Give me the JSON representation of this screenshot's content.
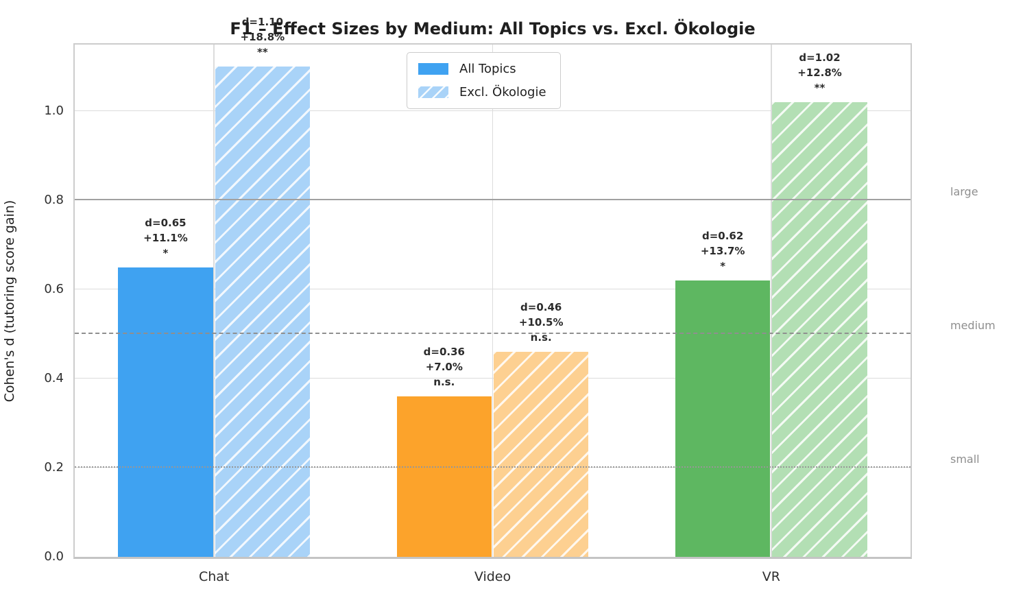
{
  "chart_data": {
    "type": "bar",
    "title": "F1 – Effect Sizes by Medium: All Topics vs. Excl. Ökologie",
    "xlabel": "",
    "ylabel": "Cohen's d (tutoring score gain)",
    "ylim": [
      0,
      1.15
    ],
    "yticks": [
      0.0,
      0.2,
      0.4,
      0.6,
      0.8,
      1.0
    ],
    "grid": true,
    "categories": [
      "Chat",
      "Video",
      "VR"
    ],
    "series": [
      {
        "name": "All Topics",
        "hatched": false,
        "values": [
          0.65,
          0.36,
          0.62
        ],
        "gain_labels": [
          "+11.1%",
          "+7.0%",
          "+13.7%"
        ],
        "significance": [
          "*",
          "n.s.",
          "*"
        ],
        "colors": [
          "#3fa2f1",
          "#fca32b",
          "#5eb761"
        ]
      },
      {
        "name": "Excl. Ökologie",
        "hatched": true,
        "values": [
          1.1,
          0.46,
          1.02
        ],
        "gain_labels": [
          "+18.8%",
          "+10.5%",
          "+12.8%"
        ],
        "significance": [
          "**",
          "n.s.",
          "**"
        ],
        "colors": [
          "#a9d3f8",
          "#fdd091",
          "#b3dfb4"
        ]
      }
    ],
    "thresholds": [
      {
        "label": "small",
        "value": 0.2,
        "line": "dotted"
      },
      {
        "label": "medium",
        "value": 0.5,
        "line": "dashed"
      },
      {
        "label": "large",
        "value": 0.8,
        "line": "solid"
      }
    ],
    "legend": {
      "position": "upper center-left",
      "entries": [
        {
          "label": "All Topics",
          "style": "solid"
        },
        {
          "label": "Excl. Ökologie",
          "style": "hatched"
        }
      ]
    },
    "annotation_format": "d={value} / {gain} / {significance}"
  }
}
